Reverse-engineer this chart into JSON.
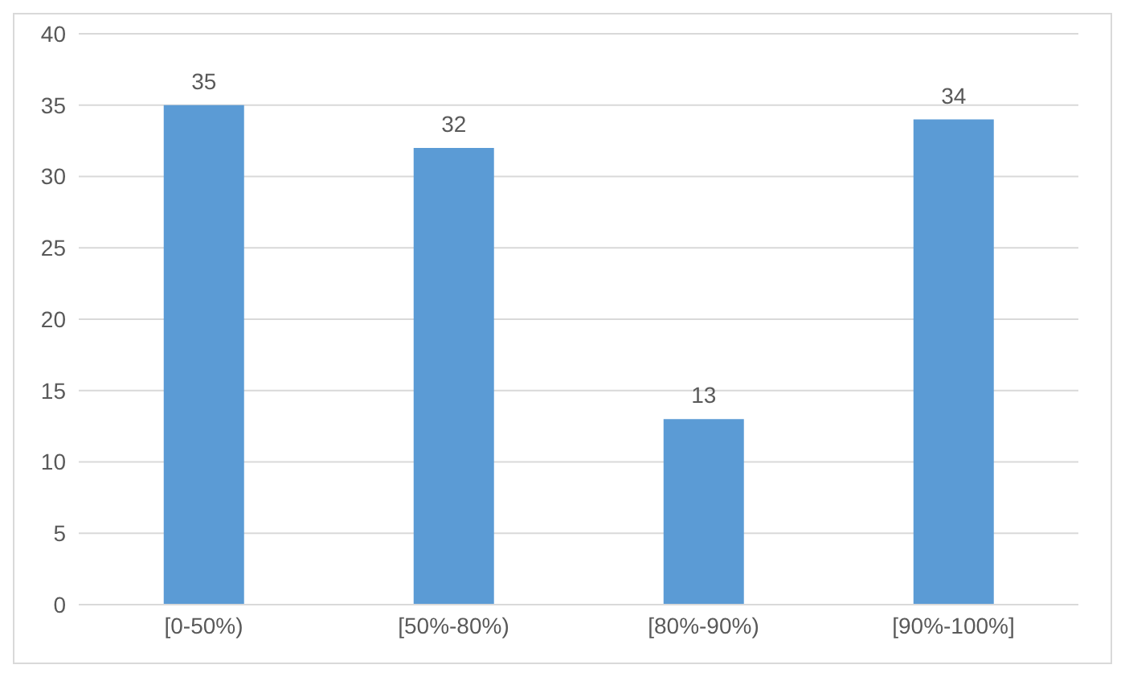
{
  "chart_data": {
    "type": "bar",
    "categories": [
      "[0-50%)",
      "[50%-80%)",
      "[80%-90%)",
      "[90%-100%]"
    ],
    "values": [
      35,
      32,
      13,
      34
    ],
    "color": "#5b9bd5",
    "ylim": [
      0,
      40
    ],
    "yticks": [
      0,
      5,
      10,
      15,
      20,
      25,
      30,
      35,
      40
    ],
    "grid": "y",
    "data_labels": true,
    "legend": false
  }
}
